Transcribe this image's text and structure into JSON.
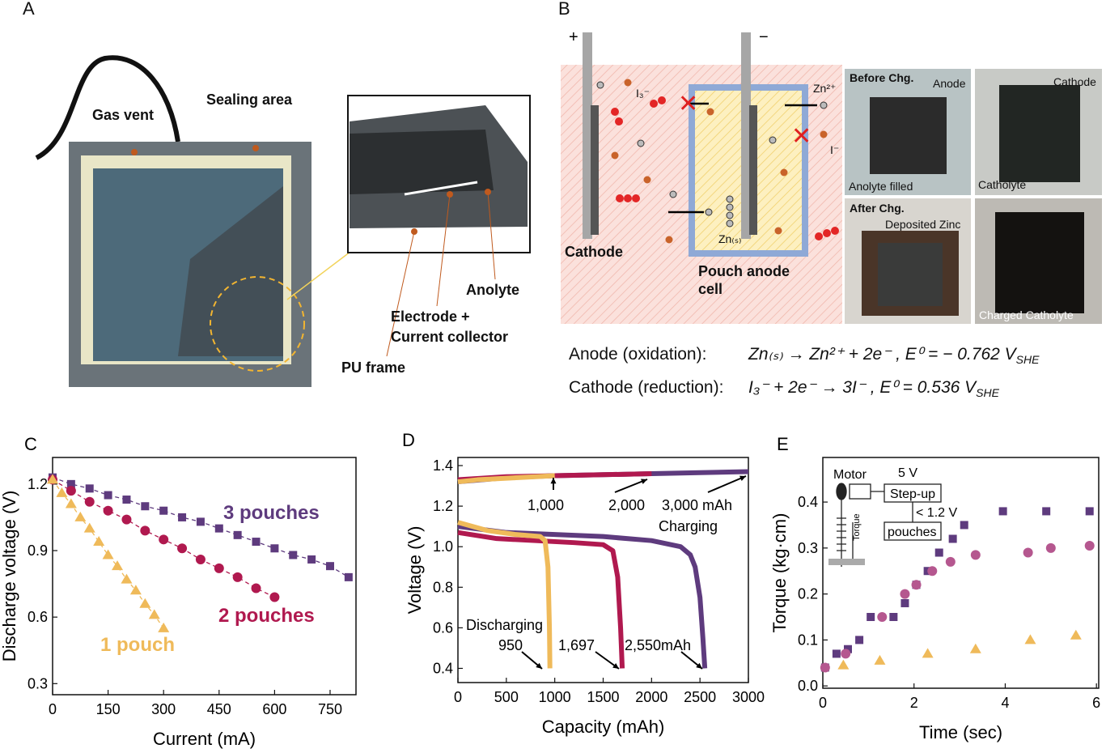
{
  "illustrations": {
    "panel_a": {
      "letter": "A",
      "labels": [
        "Gas vent",
        "Sealing area",
        "Anolyte",
        "Electrode +",
        "Current collector",
        "PU frame"
      ]
    },
    "panel_b": {
      "letter": "B",
      "labels": [
        "+",
        "−",
        "I₃⁻",
        "Zn²⁺",
        "I⁻",
        "Zn₍ₛ₎",
        "Cathode",
        "Pouch anode",
        "cell"
      ],
      "photos": [
        "Before Chg.",
        "Anode",
        "Anolyte filled",
        "Cathode",
        "Catholyte",
        "After Chg.",
        "Deposited Zinc",
        "Charged Catholyte"
      ],
      "equations": [
        {
          "label": "Anode (oxidation):",
          "formula": "Zn₍ₛ₎ → Zn²⁺ + 2e⁻ , E⁰ = − 0.762 V",
          "sub": "SHE"
        },
        {
          "label": "Cathode (reduction):",
          "formula": "I₃⁻ +  2e⁻ → 3I⁻ , E⁰ = 0.536 V",
          "sub": "SHE"
        }
      ]
    }
  },
  "chart_data": [
    {
      "type": "scatter",
      "panel": "C",
      "xlabel": "Current (mA)",
      "ylabel": "Discharge voltage (V)",
      "line_style": "dashed",
      "xlim": [
        0,
        820
      ],
      "ylim": [
        0.25,
        1.32
      ],
      "xticks": [
        0,
        150,
        300,
        450,
        600,
        750
      ],
      "yticks": [
        0.3,
        0.6,
        0.9,
        1.2
      ],
      "series": [
        {
          "name": "3 pouches",
          "color": "#5e3b7e",
          "marker": "square",
          "x": [
            0,
            50,
            100,
            150,
            200,
            250,
            300,
            350,
            400,
            450,
            500,
            550,
            600,
            650,
            700,
            750,
            800
          ],
          "values": [
            1.23,
            1.2,
            1.18,
            1.15,
            1.13,
            1.1,
            1.08,
            1.05,
            1.03,
            1.0,
            0.97,
            0.94,
            0.91,
            0.88,
            0.86,
            0.83,
            0.78
          ]
        },
        {
          "name": "2 pouches",
          "color": "#b0194f",
          "marker": "circle",
          "x": [
            0,
            50,
            100,
            150,
            200,
            250,
            300,
            350,
            400,
            450,
            500,
            550,
            600
          ],
          "values": [
            1.22,
            1.17,
            1.12,
            1.08,
            1.04,
            0.99,
            0.95,
            0.91,
            0.86,
            0.82,
            0.78,
            0.73,
            0.69
          ]
        },
        {
          "name": "1 pouch",
          "color": "#efba5a",
          "marker": "triangle",
          "x": [
            0,
            25,
            50,
            75,
            100,
            125,
            150,
            175,
            200,
            225,
            250,
            275,
            300
          ],
          "values": [
            1.22,
            1.16,
            1.11,
            1.05,
            1.0,
            0.94,
            0.88,
            0.83,
            0.77,
            0.72,
            0.66,
            0.61,
            0.55
          ]
        }
      ]
    },
    {
      "type": "line",
      "panel": "D",
      "xlabel": "Capacity (mAh)",
      "ylabel": "Voltage (V)",
      "xlim": [
        0,
        3000
      ],
      "ylim": [
        0.33,
        1.44
      ],
      "xticks": [
        0,
        500,
        1000,
        1500,
        2000,
        2500,
        3000
      ],
      "yticks": [
        0.4,
        0.6,
        0.8,
        {
          "value": 1,
          "label": "1.0"
        },
        1.2,
        1.4
      ],
      "annotations": [
        "1,000",
        "2,000",
        "3,000 mAh",
        "Charging",
        "Discharging",
        "950",
        "1,697",
        "2,550mAh"
      ],
      "series": [
        {
          "color": "#5e3b7e",
          "x": [
            0,
            500,
            1000,
            1500,
            2000,
            2500,
            3000
          ],
          "values": [
            1.32,
            1.34,
            1.35,
            1.355,
            1.36,
            1.365,
            1.37
          ]
        },
        {
          "color": "#b0194f",
          "x": [
            0,
            500,
            1000,
            1500,
            2000
          ],
          "values": [
            1.33,
            1.345,
            1.35,
            1.355,
            1.36
          ]
        },
        {
          "color": "#efba5a",
          "x": [
            0,
            200,
            400,
            600,
            800,
            1000
          ],
          "values": [
            1.32,
            1.33,
            1.335,
            1.34,
            1.345,
            1.35
          ]
        },
        {
          "color": "#5e3b7e",
          "x": [
            0,
            500,
            1000,
            1500,
            2000,
            2300,
            2400,
            2450,
            2500,
            2530,
            2550
          ],
          "values": [
            1.1,
            1.07,
            1.06,
            1.05,
            1.03,
            1.0,
            0.96,
            0.9,
            0.75,
            0.55,
            0.4
          ]
        },
        {
          "color": "#b0194f",
          "x": [
            0,
            400,
            800,
            1200,
            1500,
            1600,
            1650,
            1680,
            1697
          ],
          "values": [
            1.07,
            1.04,
            1.03,
            1.02,
            1.01,
            0.98,
            0.85,
            0.6,
            0.4
          ]
        },
        {
          "color": "#efba5a",
          "x": [
            0,
            300,
            600,
            850,
            900,
            930,
            945,
            950
          ],
          "values": [
            1.12,
            1.08,
            1.06,
            1.05,
            1.03,
            0.9,
            0.6,
            0.4
          ]
        }
      ]
    },
    {
      "type": "scatter",
      "panel": "E",
      "xlabel": "Time (sec)",
      "ylabel": "Torque (kg·cm)",
      "xlim": [
        0,
        6.05
      ],
      "ylim": [
        -0.005,
        0.497
      ],
      "xticks": [
        0,
        2,
        4,
        6
      ],
      "yticks": [
        {
          "value": 0,
          "label": "0.0"
        },
        0.1,
        0.2,
        0.3,
        0.4
      ],
      "annotations": [
        "Motor",
        "5 V",
        "Step-up",
        "< 1.2 V",
        "pouches",
        "Torque"
      ],
      "series": [
        {
          "color": "#5e3b7e",
          "marker": "square",
          "x": [
            0.05,
            0.3,
            0.55,
            0.8,
            1.05,
            1.55,
            1.8,
            2.05,
            2.3,
            2.55,
            2.85,
            3.1,
            3.95,
            4.9,
            5.85
          ],
          "values": [
            0.04,
            0.07,
            0.08,
            0.1,
            0.15,
            0.15,
            0.18,
            0.22,
            0.25,
            0.29,
            0.32,
            0.35,
            0.38,
            0.38,
            0.38
          ]
        },
        {
          "color": "#b5578f",
          "marker": "circle",
          "x": [
            0.05,
            0.5,
            1.3,
            1.8,
            2.05,
            2.4,
            2.8,
            3.35,
            4.5,
            5.0,
            5.85
          ],
          "values": [
            0.04,
            0.07,
            0.15,
            0.2,
            0.22,
            0.25,
            0.27,
            0.285,
            0.29,
            0.3,
            0.305
          ]
        },
        {
          "color": "#efba5a",
          "marker": "triangle",
          "x": [
            0.45,
            1.25,
            2.3,
            3.35,
            4.55,
            5.55
          ],
          "values": [
            0.045,
            0.055,
            0.07,
            0.08,
            0.1,
            0.11
          ]
        }
      ]
    }
  ]
}
